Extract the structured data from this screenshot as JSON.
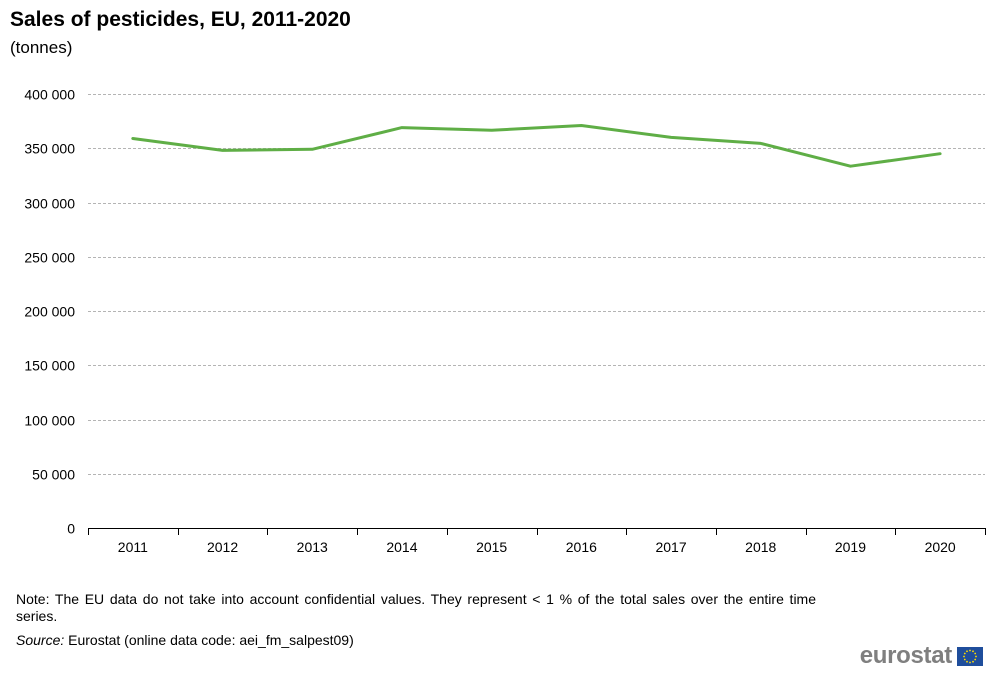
{
  "header": {
    "title": "Sales of pesticides, EU, 2011-2020",
    "subtitle": "(tonnes)"
  },
  "footer": {
    "note": "Note: The EU data do not take into account confidential values. They represent < 1 % of the total sales over the entire time series.",
    "source_label": "Source:",
    "source_text": " Eurostat (online data code: aei_fm_salpest09)",
    "logo_text": "eurostat"
  },
  "colors": {
    "series": "#5fae46",
    "grid": "#b4b4b4",
    "axis": "#000000",
    "flag_blue": "#1f4e9c",
    "flag_stars": "#ffdd00"
  },
  "chart_data": {
    "type": "line",
    "title": "Sales of pesticides, EU, 2011-2020",
    "subtitle": "(tonnes)",
    "categories": [
      "2011",
      "2012",
      "2013",
      "2014",
      "2015",
      "2016",
      "2017",
      "2018",
      "2019",
      "2020"
    ],
    "series": [
      {
        "values": [
          359000,
          348000,
          349000,
          369000,
          366500,
          371000,
          360000,
          354500,
          333500,
          345000
        ]
      }
    ],
    "ylim": [
      0,
      400000
    ],
    "yticks": [
      0,
      50000,
      100000,
      150000,
      200000,
      250000,
      300000,
      350000,
      400000
    ],
    "ytick_labels": [
      "0",
      "50 000",
      "100 000",
      "150 000",
      "200 000",
      "250 000",
      "300 000",
      "350 000",
      "400 000"
    ],
    "xlabel": "",
    "ylabel": "",
    "grid": "horizontal dashed",
    "legend": "none"
  }
}
